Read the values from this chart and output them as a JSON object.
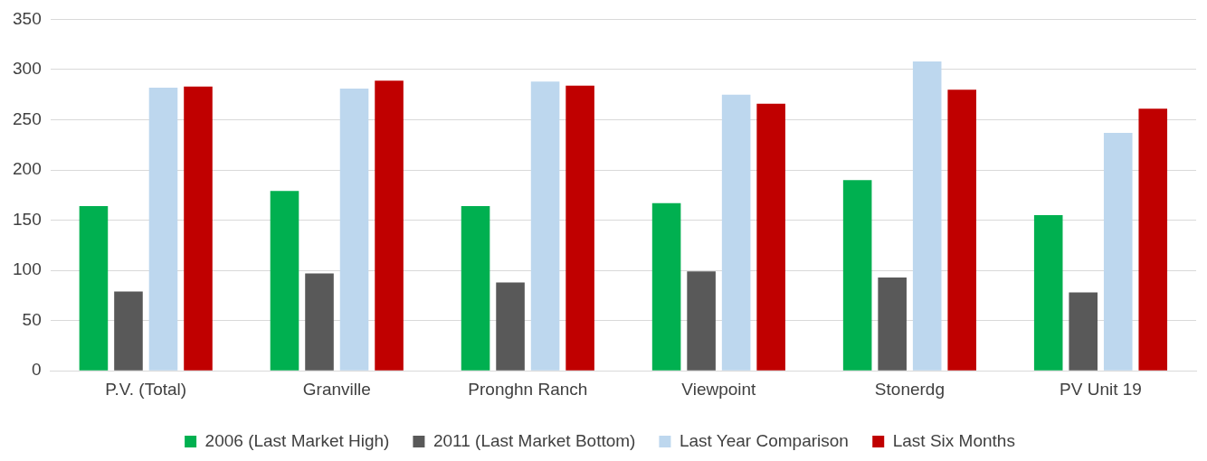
{
  "chart_data": {
    "type": "bar",
    "categories": [
      "P.V. (Total)",
      "Granville",
      "Pronghn Ranch",
      "Viewpoint",
      "Stonerdg",
      "PV Unit 19"
    ],
    "series": [
      {
        "name": "2006 (Last Market High)",
        "color": "#00b050",
        "values": [
          164,
          179,
          164,
          167,
          190,
          155
        ]
      },
      {
        "name": "2011 (Last Market Bottom)",
        "color": "#595959",
        "values": [
          79,
          97,
          88,
          99,
          93,
          78
        ]
      },
      {
        "name": "Last Year Comparison",
        "color": "#bdd7ee",
        "values": [
          282,
          281,
          288,
          275,
          308,
          237
        ]
      },
      {
        "name": "Last Six Months",
        "color": "#c00000",
        "values": [
          283,
          289,
          284,
          266,
          280,
          261
        ]
      }
    ],
    "ylim": [
      0,
      350
    ],
    "yticks": [
      0,
      50,
      100,
      150,
      200,
      250,
      300,
      350
    ],
    "grid": "y",
    "legend": "bottom"
  }
}
